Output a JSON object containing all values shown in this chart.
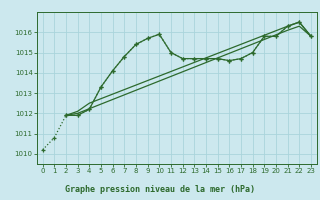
{
  "title": "Graphe pression niveau de la mer (hPa)",
  "bg_color": "#cce8ee",
  "plot_bg_color": "#cce8ee",
  "grid_color": "#aad4dc",
  "line_color": "#2d6a2d",
  "title_bg_color": "#cce8ee",
  "xlim": [
    -0.5,
    23.5
  ],
  "ylim": [
    1009.5,
    1017.0
  ],
  "xticks": [
    0,
    1,
    2,
    3,
    4,
    5,
    6,
    7,
    8,
    9,
    10,
    11,
    12,
    13,
    14,
    15,
    16,
    17,
    18,
    19,
    20,
    21,
    22,
    23
  ],
  "yticks": [
    1010,
    1011,
    1012,
    1013,
    1014,
    1015,
    1016
  ],
  "series": [
    {
      "x": [
        0,
        1,
        2,
        3,
        4,
        5,
        6,
        7,
        8,
        9,
        10,
        11,
        12,
        13,
        14,
        15,
        16,
        17,
        18,
        19,
        20,
        21,
        22,
        23
      ],
      "y": [
        1010.2,
        1010.8,
        1011.9,
        1011.9,
        1012.2,
        1013.3,
        1014.1,
        1014.8,
        1015.4,
        1015.7,
        1015.9,
        1015.0,
        1014.7,
        1014.7,
        1014.7,
        1014.7,
        1014.6,
        1014.7,
        1015.0,
        1015.8,
        1015.8,
        1016.3,
        1016.5,
        1015.8
      ],
      "style": "dotted",
      "marker": "+"
    },
    {
      "x": [
        2,
        3,
        4,
        5,
        6,
        7,
        8,
        9,
        10,
        11,
        12,
        13,
        14,
        15,
        16,
        17,
        18,
        19,
        20,
        21,
        22,
        23
      ],
      "y": [
        1011.9,
        1011.9,
        1012.2,
        1013.3,
        1014.1,
        1014.8,
        1015.4,
        1015.7,
        1015.9,
        1015.0,
        1014.7,
        1014.7,
        1014.7,
        1014.7,
        1014.6,
        1014.7,
        1015.0,
        1015.8,
        1015.8,
        1016.3,
        1016.5,
        1015.8
      ],
      "style": "solid",
      "marker": "+"
    },
    {
      "x": [
        2,
        3,
        4,
        21,
        22,
        23
      ],
      "y": [
        1011.9,
        1012.1,
        1012.5,
        1016.3,
        1016.5,
        1015.8
      ],
      "style": "solid",
      "marker": null
    },
    {
      "x": [
        2,
        3,
        21,
        22,
        23
      ],
      "y": [
        1011.9,
        1012.0,
        1016.1,
        1016.3,
        1015.8
      ],
      "style": "solid",
      "marker": null
    }
  ]
}
